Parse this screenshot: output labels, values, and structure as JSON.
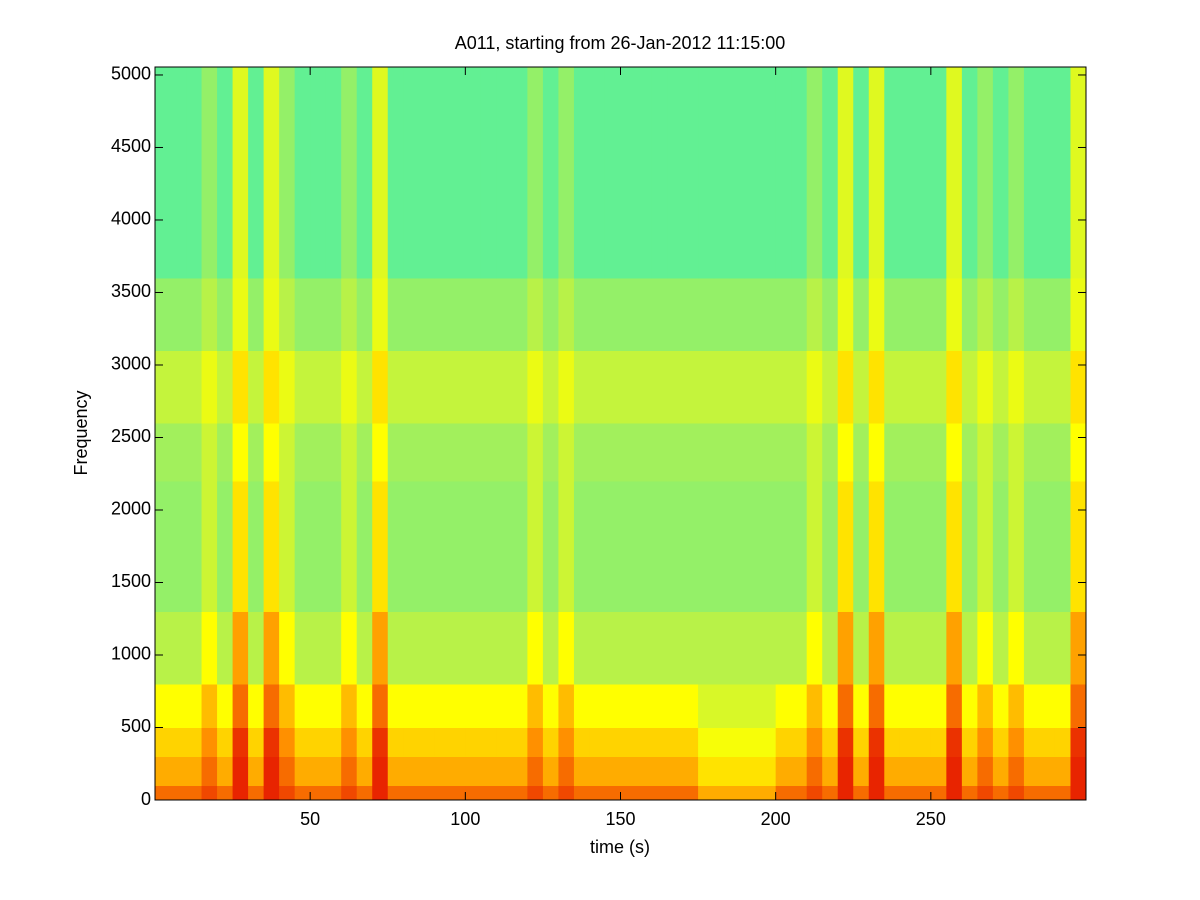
{
  "chart_data": {
    "type": "heatmap",
    "title": "A011, starting from 26-Jan-2012 11:15:00",
    "xlabel": "time (s)",
    "ylabel": "Frequency",
    "xlim": [
      0,
      300
    ],
    "ylim": [
      0,
      5055
    ],
    "xticks": [
      50,
      100,
      150,
      200,
      250
    ],
    "yticks": [
      0,
      500,
      1000,
      1500,
      2000,
      2500,
      3000,
      3500,
      4000,
      4500,
      5000
    ],
    "colormap": [
      {
        "value": 0,
        "color": "#40f0b0"
      },
      {
        "value": 0.4,
        "color": "#b0f050"
      },
      {
        "value": 0.6,
        "color": "#ffff00"
      },
      {
        "value": 0.8,
        "color": "#ff9000"
      },
      {
        "value": 1,
        "color": "#e00000"
      }
    ],
    "x_edges": [
      0,
      5,
      10,
      15,
      20,
      25,
      30,
      35,
      40,
      45,
      50,
      55,
      60,
      65,
      70,
      75,
      80,
      85,
      90,
      95,
      100,
      105,
      110,
      115,
      120,
      125,
      130,
      135,
      140,
      145,
      150,
      155,
      160,
      165,
      170,
      175,
      180,
      185,
      190,
      195,
      200,
      205,
      210,
      215,
      220,
      225,
      230,
      235,
      240,
      245,
      250,
      255,
      260,
      265,
      270,
      275,
      280,
      285,
      290,
      295,
      300
    ],
    "y_edges": [
      0,
      100,
      300,
      500,
      800,
      1300,
      2200,
      2600,
      3100,
      3600,
      5055
    ],
    "z": [
      [
        0.85,
        0.85,
        0.85,
        0.9,
        0.85,
        0.95,
        0.85,
        0.95,
        0.9,
        0.85,
        0.85,
        0.85,
        0.9,
        0.85,
        0.95,
        0.85,
        0.85,
        0.85,
        0.85,
        0.85,
        0.85,
        0.85,
        0.85,
        0.85,
        0.9,
        0.85,
        0.9,
        0.85,
        0.85,
        0.85,
        0.85,
        0.85,
        0.85,
        0.85,
        0.85,
        0.75,
        0.75,
        0.75,
        0.75,
        0.75,
        0.85,
        0.85,
        0.9,
        0.85,
        0.95,
        0.85,
        0.95,
        0.85,
        0.85,
        0.85,
        0.85,
        0.95,
        0.85,
        0.9,
        0.85,
        0.9,
        0.85,
        0.85,
        0.85,
        0.95
      ],
      [
        0.75,
        0.75,
        0.75,
        0.85,
        0.75,
        0.95,
        0.75,
        0.95,
        0.85,
        0.75,
        0.75,
        0.75,
        0.85,
        0.75,
        0.95,
        0.75,
        0.75,
        0.75,
        0.75,
        0.75,
        0.75,
        0.75,
        0.75,
        0.75,
        0.85,
        0.75,
        0.85,
        0.75,
        0.75,
        0.75,
        0.75,
        0.75,
        0.75,
        0.75,
        0.75,
        0.65,
        0.65,
        0.65,
        0.65,
        0.65,
        0.75,
        0.75,
        0.85,
        0.75,
        0.95,
        0.75,
        0.95,
        0.75,
        0.75,
        0.75,
        0.75,
        0.95,
        0.75,
        0.85,
        0.75,
        0.85,
        0.75,
        0.75,
        0.75,
        0.95
      ],
      [
        0.68,
        0.68,
        0.68,
        0.8,
        0.68,
        0.93,
        0.68,
        0.93,
        0.8,
        0.68,
        0.68,
        0.68,
        0.8,
        0.68,
        0.93,
        0.68,
        0.68,
        0.68,
        0.68,
        0.68,
        0.68,
        0.68,
        0.68,
        0.68,
        0.8,
        0.68,
        0.8,
        0.68,
        0.68,
        0.68,
        0.68,
        0.68,
        0.68,
        0.68,
        0.68,
        0.58,
        0.58,
        0.58,
        0.58,
        0.58,
        0.68,
        0.68,
        0.8,
        0.68,
        0.93,
        0.68,
        0.93,
        0.68,
        0.68,
        0.68,
        0.68,
        0.93,
        0.68,
        0.8,
        0.68,
        0.8,
        0.68,
        0.68,
        0.68,
        0.93
      ],
      [
        0.6,
        0.6,
        0.6,
        0.72,
        0.6,
        0.85,
        0.6,
        0.85,
        0.72,
        0.6,
        0.6,
        0.6,
        0.72,
        0.6,
        0.85,
        0.6,
        0.6,
        0.6,
        0.6,
        0.6,
        0.6,
        0.6,
        0.6,
        0.6,
        0.72,
        0.6,
        0.72,
        0.6,
        0.6,
        0.6,
        0.6,
        0.6,
        0.6,
        0.6,
        0.6,
        0.5,
        0.5,
        0.5,
        0.5,
        0.5,
        0.6,
        0.6,
        0.72,
        0.6,
        0.85,
        0.6,
        0.85,
        0.6,
        0.6,
        0.6,
        0.6,
        0.85,
        0.6,
        0.72,
        0.6,
        0.72,
        0.6,
        0.6,
        0.6,
        0.85
      ],
      [
        0.42,
        0.42,
        0.42,
        0.6,
        0.42,
        0.77,
        0.42,
        0.77,
        0.6,
        0.42,
        0.42,
        0.42,
        0.6,
        0.42,
        0.77,
        0.42,
        0.42,
        0.42,
        0.42,
        0.42,
        0.42,
        0.42,
        0.42,
        0.42,
        0.6,
        0.42,
        0.6,
        0.42,
        0.42,
        0.42,
        0.42,
        0.42,
        0.42,
        0.42,
        0.42,
        0.42,
        0.42,
        0.42,
        0.42,
        0.42,
        0.42,
        0.42,
        0.6,
        0.42,
        0.77,
        0.42,
        0.77,
        0.42,
        0.42,
        0.42,
        0.42,
        0.77,
        0.42,
        0.6,
        0.42,
        0.6,
        0.42,
        0.42,
        0.42,
        0.77
      ],
      [
        0.3,
        0.3,
        0.3,
        0.47,
        0.3,
        0.65,
        0.3,
        0.65,
        0.47,
        0.3,
        0.3,
        0.3,
        0.47,
        0.3,
        0.65,
        0.3,
        0.3,
        0.3,
        0.3,
        0.3,
        0.3,
        0.3,
        0.3,
        0.3,
        0.47,
        0.3,
        0.47,
        0.3,
        0.3,
        0.3,
        0.3,
        0.3,
        0.3,
        0.3,
        0.3,
        0.3,
        0.3,
        0.3,
        0.3,
        0.3,
        0.3,
        0.3,
        0.47,
        0.3,
        0.65,
        0.3,
        0.65,
        0.3,
        0.3,
        0.3,
        0.3,
        0.65,
        0.3,
        0.47,
        0.3,
        0.47,
        0.3,
        0.3,
        0.3,
        0.65
      ],
      [
        0.35,
        0.35,
        0.35,
        0.47,
        0.35,
        0.6,
        0.35,
        0.6,
        0.47,
        0.35,
        0.35,
        0.35,
        0.47,
        0.35,
        0.6,
        0.35,
        0.35,
        0.35,
        0.35,
        0.35,
        0.35,
        0.35,
        0.35,
        0.35,
        0.47,
        0.35,
        0.47,
        0.35,
        0.35,
        0.35,
        0.35,
        0.35,
        0.35,
        0.35,
        0.35,
        0.35,
        0.35,
        0.35,
        0.35,
        0.35,
        0.35,
        0.35,
        0.47,
        0.35,
        0.6,
        0.35,
        0.6,
        0.35,
        0.35,
        0.35,
        0.35,
        0.6,
        0.35,
        0.47,
        0.35,
        0.47,
        0.35,
        0.35,
        0.35,
        0.6
      ],
      [
        0.45,
        0.45,
        0.45,
        0.55,
        0.45,
        0.65,
        0.45,
        0.65,
        0.55,
        0.45,
        0.45,
        0.45,
        0.55,
        0.45,
        0.65,
        0.45,
        0.45,
        0.45,
        0.45,
        0.45,
        0.45,
        0.45,
        0.45,
        0.45,
        0.55,
        0.45,
        0.55,
        0.45,
        0.45,
        0.45,
        0.45,
        0.45,
        0.45,
        0.45,
        0.45,
        0.45,
        0.45,
        0.45,
        0.45,
        0.45,
        0.45,
        0.45,
        0.55,
        0.45,
        0.65,
        0.45,
        0.65,
        0.45,
        0.45,
        0.45,
        0.45,
        0.65,
        0.45,
        0.55,
        0.45,
        0.55,
        0.45,
        0.45,
        0.45,
        0.65
      ],
      [
        0.3,
        0.3,
        0.3,
        0.42,
        0.3,
        0.55,
        0.3,
        0.55,
        0.42,
        0.3,
        0.3,
        0.3,
        0.42,
        0.3,
        0.55,
        0.3,
        0.3,
        0.3,
        0.3,
        0.3,
        0.3,
        0.3,
        0.3,
        0.3,
        0.42,
        0.3,
        0.42,
        0.3,
        0.3,
        0.3,
        0.3,
        0.3,
        0.3,
        0.3,
        0.3,
        0.3,
        0.3,
        0.3,
        0.3,
        0.3,
        0.3,
        0.3,
        0.42,
        0.3,
        0.55,
        0.3,
        0.55,
        0.3,
        0.3,
        0.3,
        0.3,
        0.55,
        0.3,
        0.42,
        0.3,
        0.42,
        0.3,
        0.3,
        0.3,
        0.55
      ],
      [
        0.12,
        0.12,
        0.12,
        0.3,
        0.12,
        0.52,
        0.12,
        0.52,
        0.3,
        0.12,
        0.12,
        0.12,
        0.3,
        0.12,
        0.52,
        0.12,
        0.12,
        0.12,
        0.12,
        0.12,
        0.12,
        0.12,
        0.12,
        0.12,
        0.3,
        0.12,
        0.3,
        0.12,
        0.12,
        0.12,
        0.12,
        0.12,
        0.12,
        0.12,
        0.12,
        0.12,
        0.12,
        0.12,
        0.12,
        0.12,
        0.12,
        0.12,
        0.3,
        0.12,
        0.52,
        0.12,
        0.52,
        0.12,
        0.12,
        0.12,
        0.12,
        0.52,
        0.12,
        0.3,
        0.12,
        0.3,
        0.12,
        0.12,
        0.12,
        0.52
      ]
    ]
  }
}
